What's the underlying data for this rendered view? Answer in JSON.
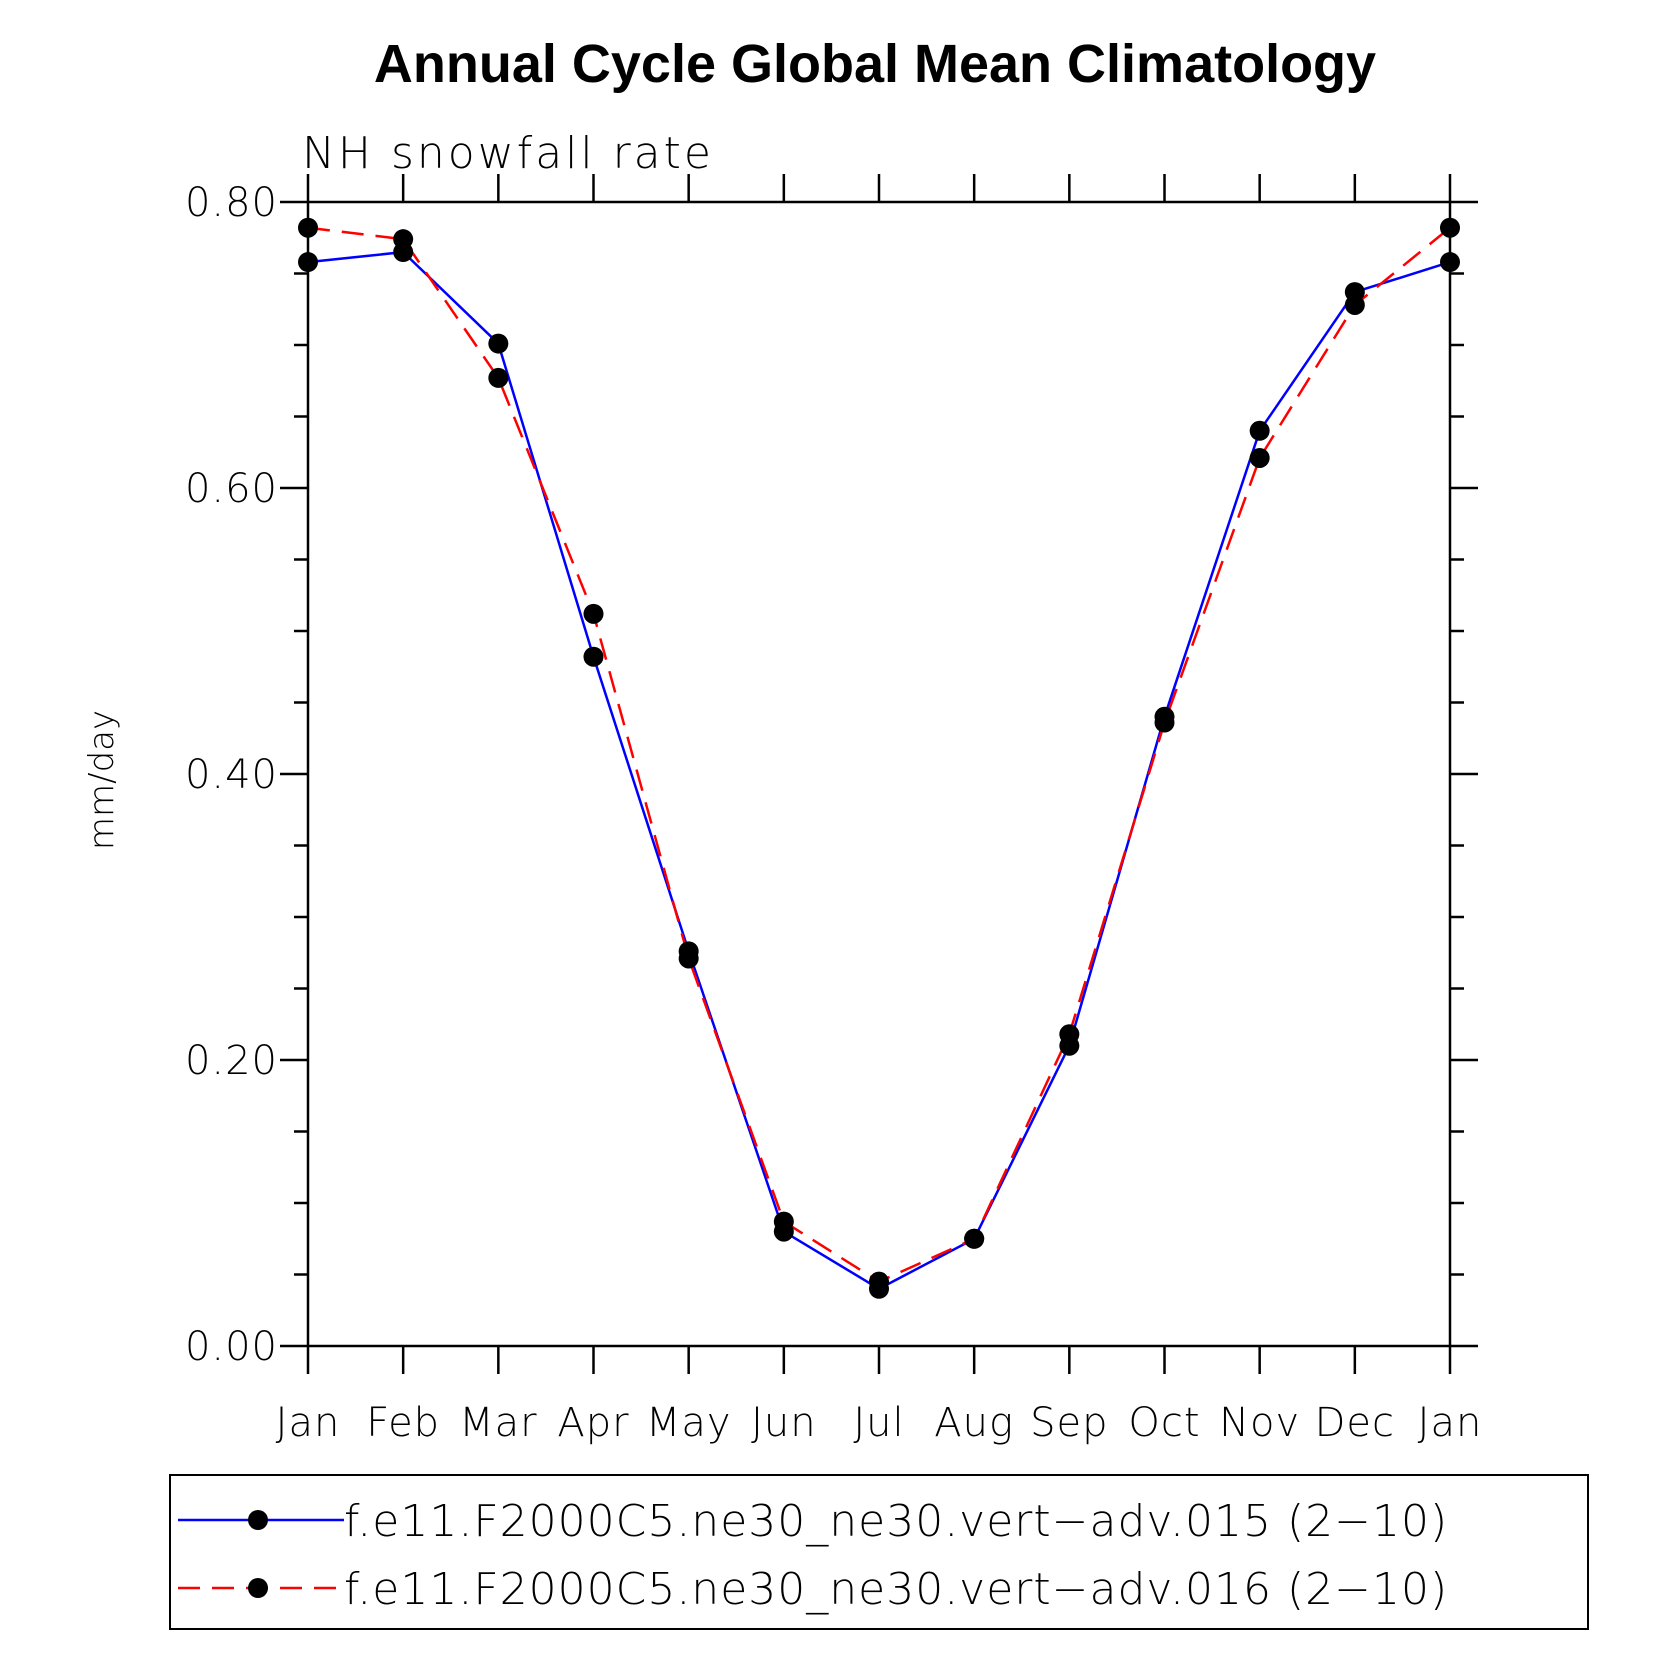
{
  "chart_data": {
    "type": "line",
    "title": "Annual Cycle Global Mean Climatology",
    "subtitle": "NH snowfall rate",
    "ylabel": "mm/day",
    "xlabel": "",
    "categories": [
      "Jan",
      "Feb",
      "Mar",
      "Apr",
      "May",
      "Jun",
      "Jul",
      "Aug",
      "Sep",
      "Oct",
      "Nov",
      "Dec",
      "Jan"
    ],
    "ylim": [
      0.0,
      0.8
    ],
    "yticks": [
      "0.00",
      "0.20",
      "0.40",
      "0.60",
      "0.80"
    ],
    "grid": false,
    "legend_position": "bottom",
    "series": [
      {
        "name": "f.e11.F2000C5.ne30_ne30.vert−adv.015 (2−10)",
        "color": "#0000ff",
        "style": "solid",
        "values": [
          0.758,
          0.765,
          0.701,
          0.482,
          0.276,
          0.08,
          0.04,
          0.075,
          0.21,
          0.44,
          0.64,
          0.737,
          0.758
        ]
      },
      {
        "name": "f.e11.F2000C5.ne30_ne30.vert−adv.016 (2−10)",
        "color": "#ff0000",
        "style": "dashed",
        "values": [
          0.782,
          0.774,
          0.677,
          0.512,
          0.271,
          0.087,
          0.045,
          0.075,
          0.218,
          0.436,
          0.621,
          0.728,
          0.782
        ]
      }
    ]
  }
}
